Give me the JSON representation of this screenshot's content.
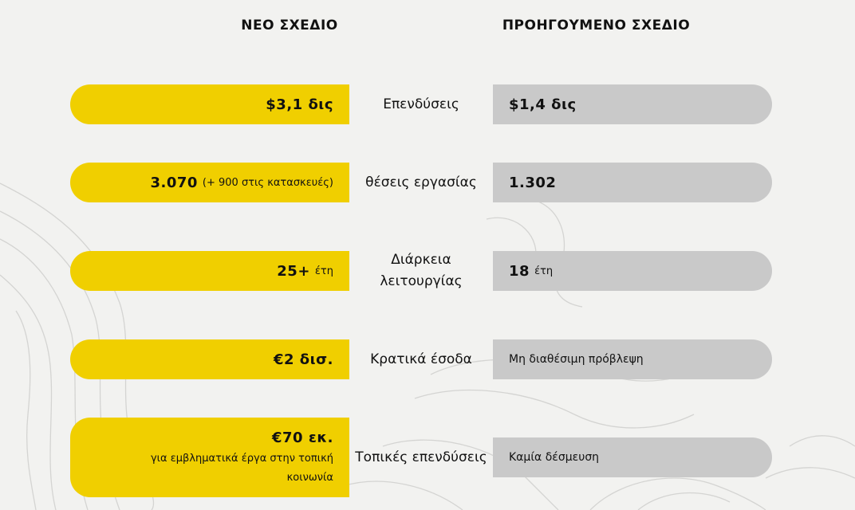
{
  "headers": {
    "new_plan": "ΝΕΟ ΣΧΕΔΙΟ",
    "old_plan": "ΠΡΟΗΓΟΥΜΕΝΟ ΣΧΕΔΙΟ"
  },
  "rows": [
    {
      "label": "Επενδύσεις",
      "new_value": "$3,1 δις",
      "old_value": "$1,4 δις"
    },
    {
      "label": "θέσεις εργασίας",
      "new_value": "3.070",
      "new_note": "(+ 900 στις κατασκευές)",
      "old_value": "1.302"
    },
    {
      "label_line1": "Διάρκεια",
      "label_line2": "λειτουργίας",
      "new_value": "25+",
      "new_unit": "έτη",
      "old_value": "18",
      "old_unit": "έτη"
    },
    {
      "label": "Κρατικά έσοδα",
      "new_value": "€2 δισ.",
      "old_text": "Μη διαθέσιμη πρόβλεψη"
    },
    {
      "label": "Τοπικές επενδύσεις",
      "new_value": "€70 εκ.",
      "new_note_line1": "για εμβληματικά έργα στην τοπική",
      "new_note_line2": "κοινωνία",
      "old_text": "Καμία δέσμευση"
    }
  ],
  "colors": {
    "new": "#f0cf00",
    "old": "#c9c9c9",
    "background": "#f2f2f0"
  }
}
